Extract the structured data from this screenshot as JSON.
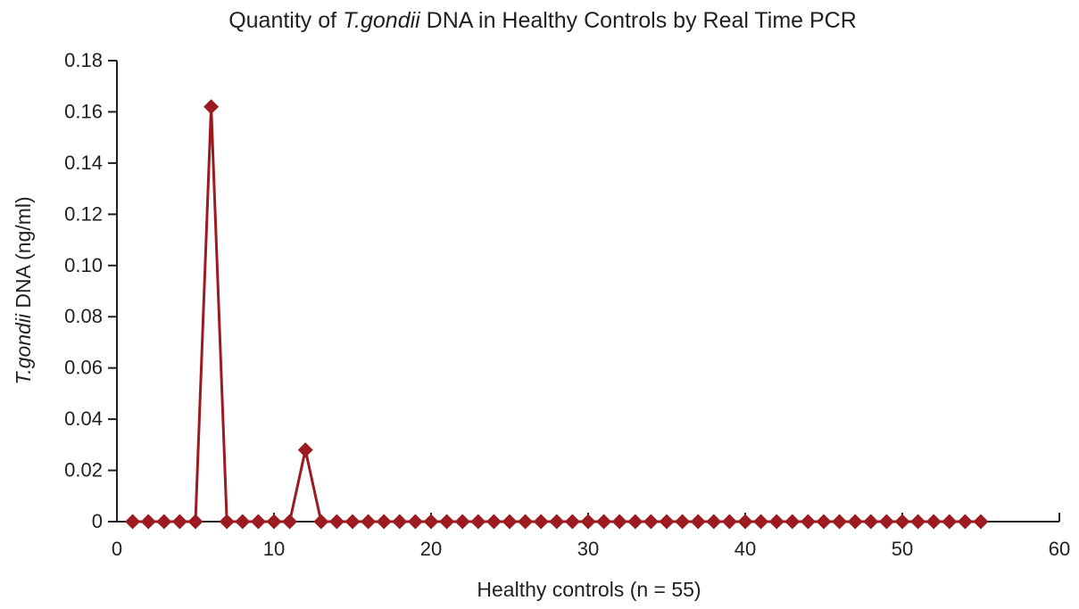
{
  "figure": {
    "background": "#ffffff"
  },
  "chart_data": {
    "type": "line",
    "title": "Quantity of T.gondii DNA in Healthy Controls by Real Time PCR",
    "title_parts": {
      "prefix": "Quantity of ",
      "italic": "T.gondii",
      "suffix": " DNA in Healthy Controls by Real Time PCR"
    },
    "xlabel": "Healthy controls (n = 55)",
    "ylabel": "T.gondii DNA (ng/ml)",
    "ylabel_parts": {
      "italic": "T.gondii",
      "rest": " DNA (ng/ml)"
    },
    "xlim": [
      0,
      60
    ],
    "ylim": [
      0,
      0.18
    ],
    "x_ticks": [
      0,
      10,
      20,
      30,
      40,
      50,
      60
    ],
    "x_tick_labels": [
      "0",
      "10",
      "20",
      "30",
      "40",
      "50",
      "60"
    ],
    "y_ticks": [
      0,
      0.02,
      0.04,
      0.06,
      0.08,
      0.1,
      0.12,
      0.14,
      0.16,
      0.18
    ],
    "y_tick_labels": [
      "0",
      "0.02",
      "0.04",
      "0.06",
      "0.08",
      "0.10",
      "0.12",
      "0.14",
      "0.16",
      "0.18"
    ],
    "grid": false,
    "legend": "none",
    "marker": "diamond",
    "line_color": "#9b1b21",
    "marker_color": "#9b1b21",
    "axis_color": "#231f20",
    "series": [
      {
        "name": "T.gondii DNA (ng/ml)",
        "x": [
          1,
          2,
          3,
          4,
          5,
          6,
          7,
          8,
          9,
          10,
          11,
          12,
          13,
          14,
          15,
          16,
          17,
          18,
          19,
          20,
          21,
          22,
          23,
          24,
          25,
          26,
          27,
          28,
          29,
          30,
          31,
          32,
          33,
          34,
          35,
          36,
          37,
          38,
          39,
          40,
          41,
          42,
          43,
          44,
          45,
          46,
          47,
          48,
          49,
          50,
          51,
          52,
          53,
          54,
          55
        ],
        "y": [
          0,
          0,
          0,
          0,
          0,
          0.162,
          0,
          0,
          0,
          0,
          0,
          0.028,
          0,
          0,
          0,
          0,
          0,
          0,
          0,
          0,
          0,
          0,
          0,
          0,
          0,
          0,
          0,
          0,
          0,
          0,
          0,
          0,
          0,
          0,
          0,
          0,
          0,
          0,
          0,
          0,
          0,
          0,
          0,
          0,
          0,
          0,
          0,
          0,
          0,
          0,
          0,
          0,
          0,
          0,
          0
        ]
      }
    ]
  }
}
